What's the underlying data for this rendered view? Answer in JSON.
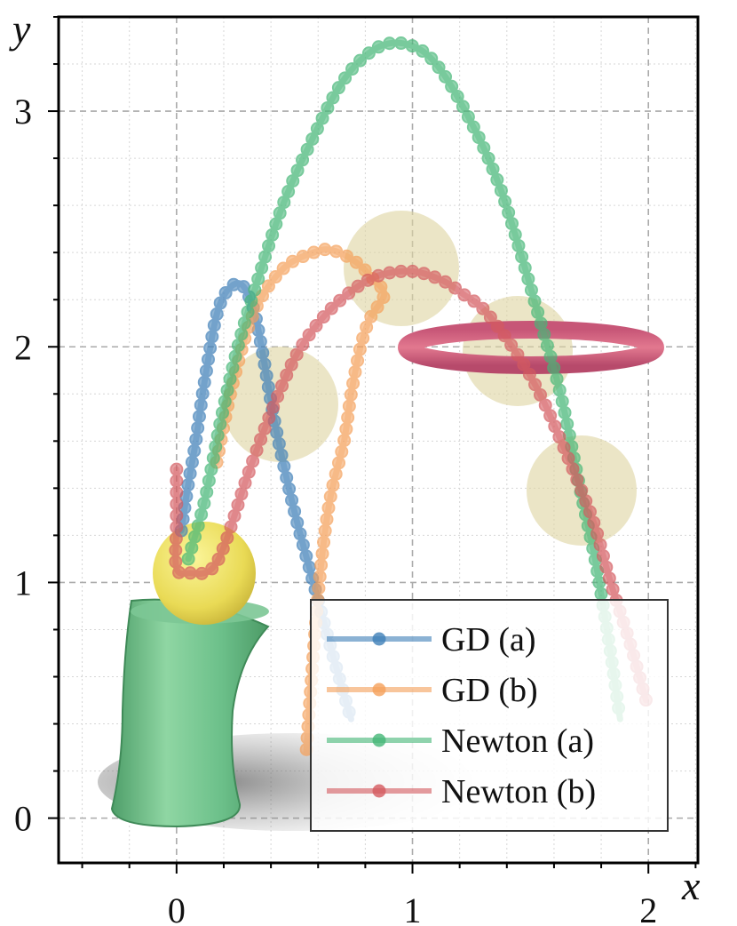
{
  "chart_data": {
    "type": "line",
    "title": "",
    "xlabel": "x",
    "ylabel": "y",
    "xlim": [
      -0.5,
      2.21
    ],
    "ylim": [
      -0.19,
      3.4
    ],
    "xticks": [
      0,
      1,
      2
    ],
    "xtick_labels": [
      "0",
      "1",
      "2"
    ],
    "yticks": [
      0,
      1,
      2,
      3
    ],
    "ytick_labels": [
      "0",
      "1",
      "2",
      "3"
    ],
    "minor_step": 0.2,
    "grid": true,
    "legend_position": "bottom-right",
    "series": [
      {
        "name": "GD (a)",
        "color": "#3f7fb8",
        "points": [
          [
            0.02,
            1.22
          ],
          [
            0.05,
            1.42
          ],
          [
            0.08,
            1.59
          ],
          [
            0.12,
            1.86
          ],
          [
            0.18,
            2.17
          ],
          [
            0.26,
            2.27
          ],
          [
            0.32,
            2.18
          ],
          [
            0.36,
            2.0
          ],
          [
            0.42,
            1.66
          ],
          [
            0.5,
            1.3
          ],
          [
            0.58,
            1.0
          ],
          [
            0.66,
            0.7
          ],
          [
            0.74,
            0.42
          ]
        ]
      },
      {
        "name": "GD (b)",
        "color": "#f5a05a",
        "points": [
          [
            0.17,
            1.51
          ],
          [
            0.24,
            1.85
          ],
          [
            0.33,
            2.15
          ],
          [
            0.45,
            2.33
          ],
          [
            0.58,
            2.4
          ],
          [
            0.66,
            2.41
          ],
          [
            0.76,
            2.36
          ],
          [
            0.84,
            2.28
          ],
          [
            0.88,
            2.22
          ],
          [
            0.82,
            2.12
          ],
          [
            0.78,
            2.0
          ],
          [
            0.74,
            1.8
          ],
          [
            0.71,
            1.6
          ],
          [
            0.65,
            1.35
          ],
          [
            0.61,
            1.05
          ],
          [
            0.58,
            0.7
          ],
          [
            0.55,
            0.28
          ]
        ]
      },
      {
        "name": "Newton (a)",
        "color": "#45b777",
        "points": [
          [
            0.05,
            1.1
          ],
          [
            0.12,
            1.35
          ],
          [
            0.19,
            1.7
          ],
          [
            0.26,
            2.0
          ],
          [
            0.34,
            2.27
          ],
          [
            0.45,
            2.6
          ],
          [
            0.57,
            2.87
          ],
          [
            0.7,
            3.12
          ],
          [
            0.82,
            3.25
          ],
          [
            0.93,
            3.29
          ],
          [
            1.05,
            3.25
          ],
          [
            1.15,
            3.13
          ],
          [
            1.25,
            2.95
          ],
          [
            1.33,
            2.78
          ],
          [
            1.41,
            2.56
          ],
          [
            1.55,
            2.08
          ],
          [
            1.63,
            1.79
          ],
          [
            1.71,
            1.4
          ],
          [
            1.77,
            1.12
          ],
          [
            1.8,
            0.95
          ],
          [
            1.84,
            0.7
          ],
          [
            1.88,
            0.42
          ]
        ]
      },
      {
        "name": "Newton (b)",
        "color": "#d45a5f",
        "points": [
          [
            0,
            1.48
          ],
          [
            0,
            1.25
          ],
          [
            0,
            1.06
          ],
          [
            0.06,
            1.04
          ],
          [
            0.14,
            1.05
          ],
          [
            0.2,
            1.15
          ],
          [
            0.3,
            1.45
          ],
          [
            0.4,
            1.72
          ],
          [
            0.5,
            1.95
          ],
          [
            0.6,
            2.1
          ],
          [
            0.72,
            2.22
          ],
          [
            0.85,
            2.3
          ],
          [
            1.0,
            2.32
          ],
          [
            1.13,
            2.28
          ],
          [
            1.22,
            2.22
          ],
          [
            1.31,
            2.15
          ],
          [
            1.45,
            1.96
          ],
          [
            1.55,
            1.78
          ],
          [
            1.63,
            1.6
          ],
          [
            1.7,
            1.43
          ],
          [
            1.77,
            1.25
          ],
          [
            1.84,
            1.0
          ],
          [
            1.92,
            0.75
          ],
          [
            1.99,
            0.5
          ]
        ]
      }
    ]
  }
}
